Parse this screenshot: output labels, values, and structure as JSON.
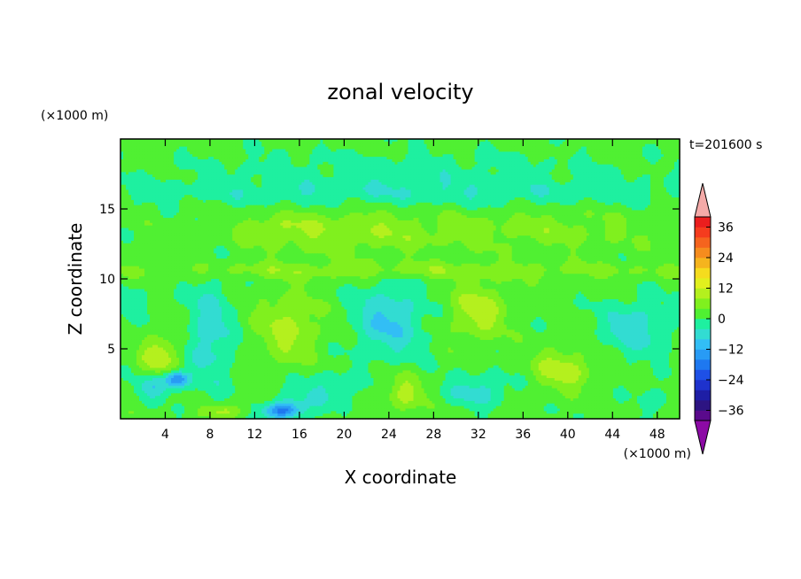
{
  "chart_data": {
    "type": "heatmap",
    "title": "zonal velocity",
    "xlabel": "X coordinate",
    "ylabel": "Z coordinate",
    "x_unit": "(×1000 m)",
    "y_unit": "(×1000 m)",
    "time_label": "t=201600 s",
    "xlim": [
      0,
      50
    ],
    "ylim": [
      0,
      20
    ],
    "x_ticks": [
      4,
      8,
      12,
      16,
      20,
      24,
      28,
      32,
      36,
      40,
      44,
      48
    ],
    "y_ticks": [
      5,
      10,
      15
    ],
    "x_tick_labels": [
      "4",
      "8",
      "12",
      "16",
      "20",
      "24",
      "28",
      "32",
      "36",
      "40",
      "44",
      "48"
    ],
    "y_tick_labels": [
      "5",
      "10",
      "15"
    ],
    "grid": false,
    "colorbar": {
      "levels": [
        -40,
        -36,
        -32,
        -28,
        -24,
        -20,
        -16,
        -12,
        -8,
        -4,
        0,
        4,
        8,
        12,
        16,
        20,
        24,
        28,
        32,
        36,
        40
      ],
      "tick_values": [
        36,
        24,
        12,
        0,
        -12,
        -24,
        -36
      ],
      "tick_labels": [
        "36",
        "24",
        "12",
        "0",
        "−12",
        "−24",
        "−36"
      ],
      "colors": [
        "#5a0a8c",
        "#2d1482",
        "#1e1ea5",
        "#1e32cd",
        "#1e50e6",
        "#1e78f0",
        "#289bf5",
        "#32bef5",
        "#32dcd2",
        "#1ef0a0",
        "#50f032",
        "#80f01e",
        "#b4f01e",
        "#e1f01e",
        "#f5dc1e",
        "#f5b41e",
        "#f58c1e",
        "#f5641e",
        "#f53c1e",
        "#eb1e1e"
      ],
      "over_color": "#f4aaa8",
      "under_color": "#8c0aa5",
      "placement": "right"
    },
    "blobs": [
      {
        "x": 25,
        "z": 16.2,
        "sx": 30,
        "sz": 1.0,
        "v": -5
      },
      {
        "x": 20,
        "z": 13.3,
        "sx": 9,
        "sz": 1.6,
        "v": 6
      },
      {
        "x": 14,
        "z": 13.8,
        "sx": 3,
        "sz": 0.6,
        "v": 3
      },
      {
        "x": 38,
        "z": 13.5,
        "sx": 10,
        "sz": 1.4,
        "v": 4
      },
      {
        "x": 25,
        "z": 18.0,
        "sx": 20,
        "sz": 1.2,
        "v": -3
      },
      {
        "x": 25,
        "z": 10.6,
        "sx": 30,
        "sz": 0.6,
        "v": 5
      },
      {
        "x": 3.5,
        "z": 4.5,
        "sx": 1.6,
        "sz": 1.3,
        "v": 10
      },
      {
        "x": 5,
        "z": 2.8,
        "sx": 1.0,
        "sz": 0.6,
        "v": -18
      },
      {
        "x": 3,
        "z": 2.3,
        "sx": 1.5,
        "sz": 0.8,
        "v": -9
      },
      {
        "x": 8,
        "z": 6.0,
        "sx": 2.0,
        "sz": 4.0,
        "v": -8
      },
      {
        "x": 15,
        "z": 6.5,
        "sx": 2.6,
        "sz": 2.5,
        "v": 8
      },
      {
        "x": 14.5,
        "z": 0.6,
        "sx": 1.7,
        "sz": 0.6,
        "v": -20
      },
      {
        "x": 18,
        "z": 2.0,
        "sx": 3,
        "sz": 1.3,
        "v": -6
      },
      {
        "x": 24,
        "z": 7.0,
        "sx": 3,
        "sz": 2.6,
        "v": -10
      },
      {
        "x": 25.5,
        "z": 1.8,
        "sx": 1.7,
        "sz": 1.3,
        "v": 8
      },
      {
        "x": 32,
        "z": 7.7,
        "sx": 2.4,
        "sz": 2.0,
        "v": 9
      },
      {
        "x": 32,
        "z": 2.0,
        "sx": 3,
        "sz": 1.2,
        "v": -7
      },
      {
        "x": 39.5,
        "z": 3.5,
        "sx": 2.6,
        "sz": 1.4,
        "v": 9
      },
      {
        "x": 46,
        "z": 6.5,
        "sx": 3,
        "sz": 2.0,
        "v": -8
      },
      {
        "x": 9,
        "z": 0.5,
        "sx": 2,
        "sz": 0.5,
        "v": 8
      },
      {
        "x": 48,
        "z": 1.5,
        "sx": 1.6,
        "sz": 1.0,
        "v": -4
      },
      {
        "x": 1,
        "z": 8.5,
        "sx": 1.6,
        "sz": 1.4,
        "v": -3
      }
    ]
  }
}
